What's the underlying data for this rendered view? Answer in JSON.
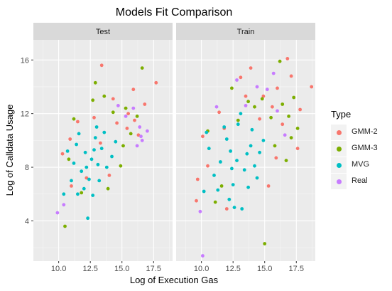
{
  "chart_data": {
    "type": "scatter",
    "title": "Models Fit Comparison",
    "xlabel": "Log of Execution Gas",
    "ylabel": "Log of Calldata Usage",
    "xlim": [
      8.0,
      19.0
    ],
    "ylim": [
      1.0,
      17.5
    ],
    "x_ticks": [
      10.0,
      12.5,
      15.0,
      17.5
    ],
    "y_ticks": [
      4,
      8,
      12,
      16
    ],
    "grid": true,
    "legend": {
      "title": "Type",
      "position": "right"
    },
    "facets": [
      {
        "label": "Test",
        "series": [
          {
            "name": "GMM-2",
            "color": "#F8766D",
            "points": [
              [
                13.4,
                15.6
              ],
              [
                15.9,
                13.8
              ],
              [
                16.8,
                12.7
              ],
              [
                17.7,
                14.3
              ],
              [
                11.5,
                11.4
              ],
              [
                14.6,
                11.3
              ],
              [
                15.4,
                10.9
              ],
              [
                16.3,
                10.4
              ],
              [
                10.3,
                9.0
              ],
              [
                12.8,
                11.7
              ],
              [
                11.0,
                6.6
              ],
              [
                14.0,
                7.4
              ],
              [
                15.5,
                12.0
              ],
              [
                13.3,
                9.8
              ],
              [
                12.2,
                7.2
              ],
              [
                16.0,
                11.5
              ],
              [
                10.9,
                10.1
              ],
              [
                14.3,
                13.1
              ]
            ]
          },
          {
            "name": "GMM-3",
            "color": "#7CAE00",
            "points": [
              [
                16.6,
                15.4
              ],
              [
                12.9,
                14.3
              ],
              [
                12.7,
                13.0
              ],
              [
                10.5,
                3.6
              ],
              [
                14.3,
                12.1
              ],
              [
                15.1,
                9.6
              ],
              [
                13.9,
                6.4
              ],
              [
                11.2,
                11.6
              ],
              [
                15.7,
                10.5
              ],
              [
                13.6,
                13.3
              ],
              [
                14.9,
                8.1
              ],
              [
                11.8,
                6.1
              ],
              [
                16.2,
                11.8
              ],
              [
                10.8,
                8.6
              ],
              [
                15.3,
                12.4
              ]
            ]
          },
          {
            "name": "MVG",
            "color": "#00BFC4",
            "points": [
              [
                12.6,
                8.6
              ],
              [
                12.1,
                9.1
              ],
              [
                13.1,
                8.2
              ],
              [
                11.8,
                7.7
              ],
              [
                13.4,
                9.4
              ],
              [
                12.4,
                7.1
              ],
              [
                11.4,
                9.7
              ],
              [
                13.8,
                8.0
              ],
              [
                12.9,
                10.2
              ],
              [
                11.2,
                8.3
              ],
              [
                12.0,
                6.4
              ],
              [
                13.6,
                10.6
              ],
              [
                10.7,
                9.2
              ],
              [
                12.7,
                5.9
              ],
              [
                14.2,
                8.8
              ],
              [
                11.6,
                10.5
              ],
              [
                13.2,
                7.0
              ],
              [
                10.4,
                6.0
              ],
              [
                12.3,
                4.2
              ],
              [
                14.5,
                9.9
              ],
              [
                11.0,
                7.0
              ],
              [
                13.0,
                11.0
              ],
              [
                12.2,
                8.0
              ],
              [
                12.8,
                9.3
              ],
              [
                11.5,
                6.0
              ]
            ]
          },
          {
            "name": "Real",
            "color": "#C77CFF",
            "points": [
              [
                16.6,
                10.0
              ],
              [
                16.4,
                11.0
              ],
              [
                15.9,
                12.4
              ],
              [
                16.2,
                9.6
              ],
              [
                17.0,
                10.7
              ],
              [
                9.9,
                4.6
              ],
              [
                14.7,
                12.6
              ],
              [
                15.3,
                11.8
              ],
              [
                16.5,
                10.3
              ],
              [
                10.4,
                5.2
              ]
            ]
          }
        ]
      },
      {
        "label": "Train",
        "series": [
          {
            "name": "GMM-2",
            "color": "#F8766D",
            "points": [
              [
                13.9,
                15.4
              ],
              [
                16.8,
                16.1
              ],
              [
                18.7,
                14.0
              ],
              [
                17.1,
                14.8
              ],
              [
                14.9,
                13.3
              ],
              [
                10.1,
                10.3
              ],
              [
                9.7,
                7.1
              ],
              [
                17.6,
                9.4
              ],
              [
                13.1,
                14.7
              ],
              [
                15.6,
                12.5
              ],
              [
                16.4,
                11.2
              ],
              [
                11.4,
                12.1
              ],
              [
                9.6,
                5.5
              ],
              [
                12.0,
                4.9
              ],
              [
                15.3,
                6.6
              ],
              [
                16.0,
                13.9
              ],
              [
                13.5,
                13.3
              ],
              [
                10.5,
                8.1
              ],
              [
                14.6,
                11.6
              ],
              [
                17.8,
                12.3
              ],
              [
                11.8,
                10.9
              ],
              [
                15.9,
                8.7
              ]
            ]
          },
          {
            "name": "GMM-3",
            "color": "#7CAE00",
            "points": [
              [
                15.0,
                2.3
              ],
              [
                12.4,
                13.9
              ],
              [
                16.2,
                15.9
              ],
              [
                17.6,
                10.9
              ],
              [
                16.9,
                11.8
              ],
              [
                14.2,
                12.5
              ],
              [
                11.1,
                5.4
              ],
              [
                15.8,
                9.6
              ],
              [
                16.4,
                12.7
              ],
              [
                13.7,
                12.9
              ],
              [
                10.5,
                10.7
              ],
              [
                17.1,
                10.2
              ],
              [
                15.5,
                11.7
              ],
              [
                12.9,
                11.5
              ],
              [
                16.7,
                8.5
              ],
              [
                11.6,
                6.6
              ],
              [
                14.8,
                13.1
              ],
              [
                17.3,
                13.2
              ]
            ]
          },
          {
            "name": "MVG",
            "color": "#00BFC4",
            "points": [
              [
                12.8,
                8.5
              ],
              [
                12.3,
                9.2
              ],
              [
                13.4,
                7.8
              ],
              [
                12.0,
                10.1
              ],
              [
                13.9,
                9.6
              ],
              [
                12.5,
                6.7
              ],
              [
                11.5,
                8.4
              ],
              [
                14.2,
                8.1
              ],
              [
                12.9,
                11.2
              ],
              [
                11.0,
                7.4
              ],
              [
                12.2,
                5.6
              ],
              [
                14.0,
                10.8
              ],
              [
                10.6,
                9.4
              ],
              [
                13.2,
                4.9
              ],
              [
                14.6,
                9.1
              ],
              [
                11.8,
                11.0
              ],
              [
                13.7,
                6.5
              ],
              [
                10.2,
                6.2
              ],
              [
                12.6,
                5.0
              ],
              [
                14.9,
                10.0
              ],
              [
                11.3,
                6.3
              ],
              [
                13.1,
                12.0
              ],
              [
                12.4,
                7.9
              ],
              [
                13.6,
                9.0
              ],
              [
                10.4,
                10.6
              ],
              [
                14.4,
                7.2
              ]
            ]
          },
          {
            "name": "Real",
            "color": "#C77CFF",
            "points": [
              [
                10.1,
                1.4
              ],
              [
                9.9,
                4.7
              ],
              [
                12.8,
                14.5
              ],
              [
                15.2,
                13.8
              ],
              [
                16.0,
                12.2
              ],
              [
                11.2,
                12.5
              ],
              [
                14.4,
                14.0
              ],
              [
                16.6,
                10.4
              ],
              [
                13.5,
                12.6
              ],
              [
                15.7,
                15.0
              ]
            ]
          }
        ]
      }
    ]
  }
}
